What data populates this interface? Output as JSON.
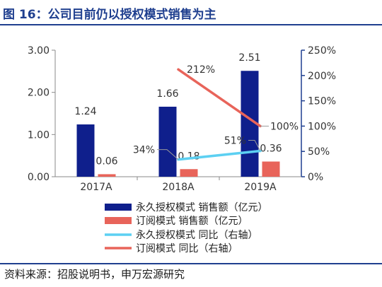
{
  "title": "图 16：公司目前仍以授权模式销售为主",
  "source": "资料来源：招股说明书，申万宏源研究",
  "chart_data": {
    "type": "bar",
    "categories": [
      "2017A",
      "2018A",
      "2019A"
    ],
    "y_left": {
      "ticks": [
        "0.00",
        "1.00",
        "2.00",
        "3.00"
      ],
      "range": [
        0,
        3
      ]
    },
    "y_right": {
      "ticks": [
        "0%",
        "50%",
        "100%",
        "150%",
        "200%",
        "250%"
      ],
      "range": [
        0,
        250
      ]
    },
    "bar_series": [
      {
        "name": "永久授权模式 销售额（亿元）",
        "color": "#0f1f8c",
        "values": [
          1.24,
          1.66,
          2.51
        ],
        "labels": [
          "1.24",
          "1.66",
          "2.51"
        ]
      },
      {
        "name": "订阅模式 销售额（亿元）",
        "color": "#e8645a",
        "values": [
          0.06,
          0.18,
          0.36
        ],
        "labels": [
          "0.06",
          "0.18",
          "0.36"
        ]
      }
    ],
    "line_series": [
      {
        "name": "永久授权模式 同比（右轴）",
        "color": "#5cd0f2",
        "points": [
          {
            "x": "2018A",
            "y": 34,
            "label": "34%"
          },
          {
            "x": "2019A",
            "y": 51,
            "label": "51%"
          }
        ]
      },
      {
        "name": "订阅模式 同比（右轴）",
        "color": "#e8645a",
        "points": [
          {
            "x": "2018A",
            "y": 212,
            "label": "212%"
          },
          {
            "x": "2019A",
            "y": 100,
            "label": "100%"
          }
        ]
      }
    ],
    "legend_position": "bottom-left"
  }
}
